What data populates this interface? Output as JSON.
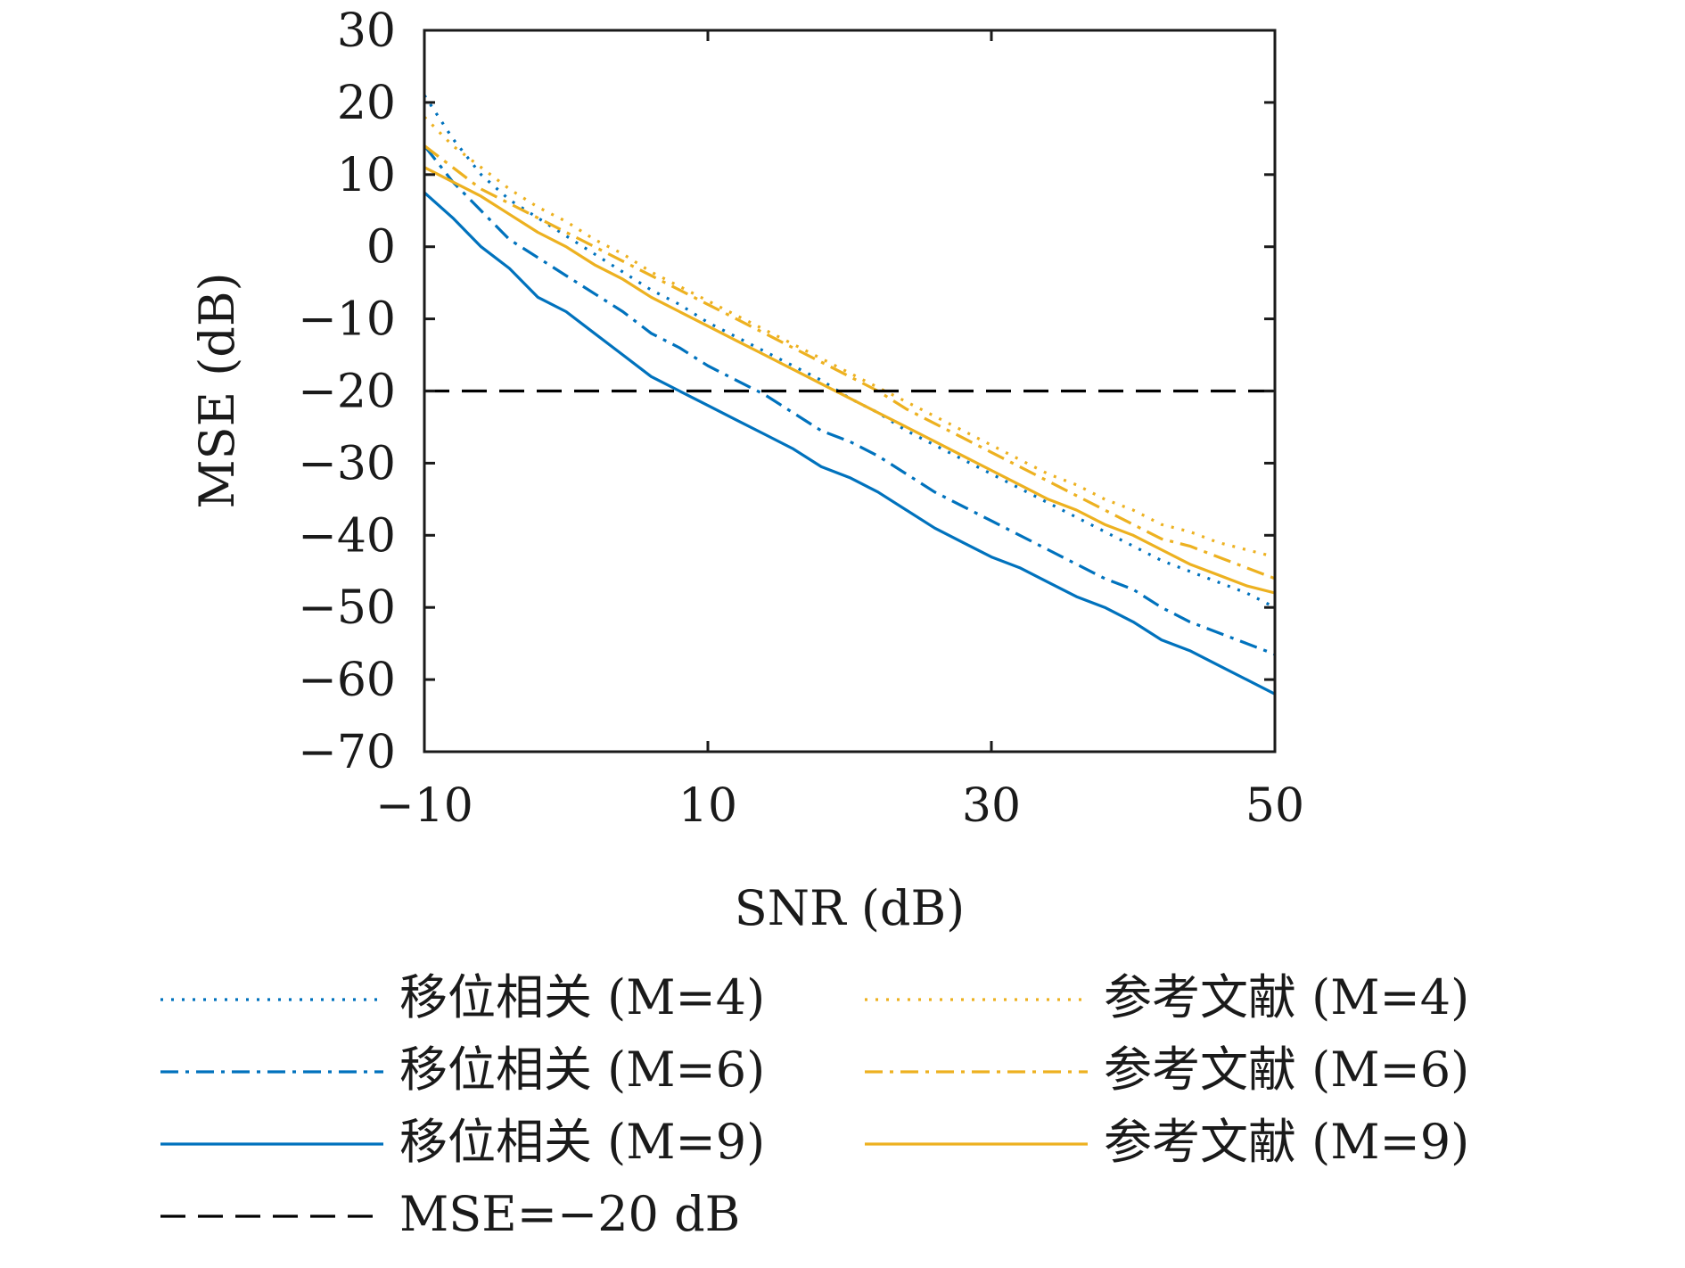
{
  "chart_data": {
    "type": "line",
    "xlabel": "SNR (dB)",
    "ylabel": "MSE (dB)",
    "xlim": [
      -10,
      50
    ],
    "ylim": [
      -70,
      30
    ],
    "xticks": [
      -10,
      10,
      30,
      50
    ],
    "xtick_labels": [
      "−10",
      "10",
      "30",
      "50"
    ],
    "yticks": [
      30,
      20,
      10,
      0,
      -10,
      -20,
      -30,
      -40,
      -50,
      -60,
      -70
    ],
    "ytick_labels": [
      "30",
      "20",
      "10",
      "0",
      "−10",
      "−20",
      "−30",
      "−40",
      "−50",
      "−60",
      "−70"
    ],
    "grid": false,
    "legend_position": "bottom",
    "x": [
      -10,
      -8,
      -6,
      -4,
      -2,
      0,
      2,
      4,
      6,
      8,
      10,
      12,
      14,
      16,
      18,
      20,
      22,
      24,
      26,
      28,
      30,
      32,
      34,
      36,
      38,
      40,
      42,
      44,
      46,
      48,
      50
    ],
    "series": [
      {
        "name": "移位相关 (M=4)",
        "color": "#0072BD",
        "style": "dotted",
        "values": [
          21,
          15,
          10,
          6.5,
          4,
          1.5,
          -1,
          -3.5,
          -6,
          -8,
          -10.5,
          -12.5,
          -14.5,
          -16.5,
          -18.5,
          -21,
          -23,
          -25.5,
          -27.5,
          -29.5,
          -31.5,
          -33.5,
          -35.5,
          -37.5,
          -39.5,
          -41.5,
          -43.5,
          -45,
          -46.5,
          -48,
          -50
        ]
      },
      {
        "name": "移位相关 (M=6)",
        "color": "#0072BD",
        "style": "dashdot",
        "values": [
          14,
          9,
          5,
          1,
          -1.5,
          -4,
          -6.5,
          -9,
          -12,
          -14,
          -16.5,
          -18.5,
          -20.5,
          -23,
          -25.5,
          -27,
          -29,
          -31.5,
          -34,
          -36,
          -38,
          -40,
          -42,
          -44,
          -46,
          -47.5,
          -50,
          -52,
          -53.5,
          -55,
          -56.5
        ]
      },
      {
        "name": "移位相关 (M=9)",
        "color": "#0072BD",
        "style": "solid",
        "values": [
          7.5,
          4,
          0,
          -3,
          -7,
          -9,
          -12,
          -15,
          -18,
          -20,
          -22,
          -24,
          -26,
          -28,
          -30.5,
          -32,
          -34,
          -36.5,
          -39,
          -41,
          -43,
          -44.5,
          -46.5,
          -48.5,
          -50,
          -52,
          -54.5,
          -56,
          -58,
          -60,
          -62
        ]
      },
      {
        "name": "参考文献 (M=4)",
        "color": "#EDB120",
        "style": "dotted",
        "values": [
          18,
          14,
          11,
          8,
          5.5,
          3.5,
          1,
          -1,
          -3.5,
          -5.5,
          -7.5,
          -9.5,
          -11.5,
          -13.5,
          -15.5,
          -17.5,
          -19.5,
          -21.5,
          -23.5,
          -25.5,
          -27.5,
          -29.5,
          -31.5,
          -33,
          -35,
          -36.5,
          -38.5,
          -39.5,
          -41,
          -42,
          -43
        ]
      },
      {
        "name": "参考文献 (M=6)",
        "color": "#EDB120",
        "style": "dashdot",
        "values": [
          14,
          11,
          8,
          6,
          4,
          2,
          0,
          -2,
          -4,
          -6,
          -8,
          -10,
          -12,
          -14,
          -16,
          -18,
          -20,
          -22.5,
          -24.5,
          -26.5,
          -28.5,
          -30.5,
          -32.5,
          -34.5,
          -36.5,
          -38.5,
          -40.5,
          -41.5,
          -43,
          -44.5,
          -46
        ]
      },
      {
        "name": "参考文献 (M=9)",
        "color": "#EDB120",
        "style": "solid",
        "values": [
          11,
          9,
          7,
          4.5,
          2,
          0,
          -2.5,
          -4.5,
          -7,
          -9,
          -11,
          -13,
          -15,
          -17,
          -19,
          -21,
          -23,
          -25,
          -27,
          -29,
          -31,
          -33,
          -35,
          -36.5,
          -38.5,
          -40,
          -42,
          -44,
          -45.5,
          -47,
          -48
        ]
      },
      {
        "name": "MSE=−20 dB",
        "color": "#000000",
        "style": "dashed",
        "values": [
          -20,
          -20,
          -20,
          -20,
          -20,
          -20,
          -20,
          -20,
          -20,
          -20,
          -20,
          -20,
          -20,
          -20,
          -20,
          -20,
          -20,
          -20,
          -20,
          -20,
          -20,
          -20,
          -20,
          -20,
          -20,
          -20,
          -20,
          -20,
          -20,
          -20,
          -20
        ]
      }
    ],
    "legend": {
      "columns": [
        [
          "移位相关 (M=4)",
          "移位相关 (M=6)",
          "移位相关 (M=9)",
          "MSE=−20 dB"
        ],
        [
          "参考文献 (M=4)",
          "参考文献 (M=6)",
          "参考文献 (M=9)"
        ]
      ]
    }
  }
}
